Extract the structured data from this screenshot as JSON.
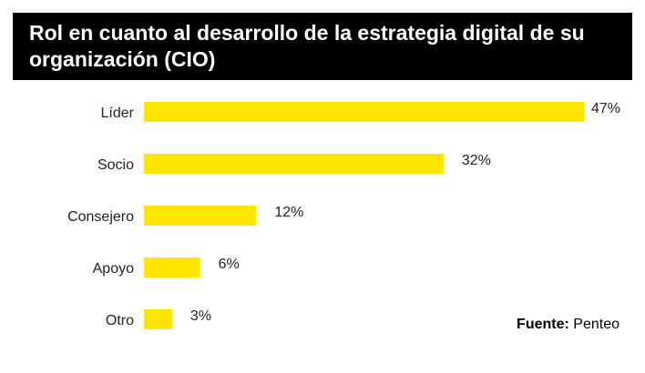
{
  "chart_data": {
    "type": "bar",
    "orientation": "horizontal",
    "title": "Rol en cuanto al desarrollo de la estrategia digital de su organización (CIO)",
    "categories": [
      "Líder",
      "Socio",
      "Consejero",
      "Apoyo",
      "Otro"
    ],
    "values": [
      47,
      32,
      12,
      6,
      3
    ],
    "value_labels": [
      "47%",
      "32%",
      "12%",
      "6%",
      "3%"
    ],
    "xlim": [
      0,
      47
    ],
    "bar_color": "#FFE500",
    "grid": false
  },
  "source": {
    "label": "Fuente:",
    "value": "Penteo"
  }
}
